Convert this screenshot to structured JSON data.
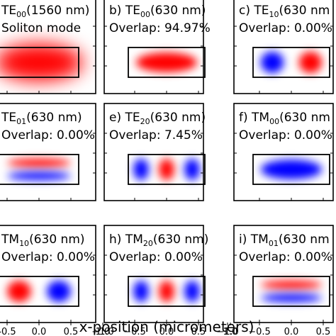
{
  "figure": {
    "xlabel": "x-position (micrometers)",
    "tick_labels": [
      "-0.5",
      "0.0",
      "0.5",
      "1.0",
      "−1.0",
      "−0.5",
      "0.0",
      "0.5",
      "1.0",
      "−1.0",
      "−0.5",
      "0.0",
      "0.5"
    ],
    "colors": {
      "positive": "#ff0000",
      "negative": "#0000ff",
      "frame": "#000000"
    }
  },
  "panels": [
    {
      "id": "a",
      "letter": "",
      "mode": "TE",
      "sub": "00",
      "wl": "(1560 nm)",
      "line2": "Soliton mode",
      "field": {
        "nx": 1,
        "ny": 1,
        "spread": "wide",
        "polarity": "positive"
      }
    },
    {
      "id": "b",
      "letter": "b) ",
      "mode": "TE",
      "sub": "00",
      "wl": "(630 nm)",
      "line2": "Overlap: 94.97%",
      "field": {
        "nx": 1,
        "ny": 1,
        "spread": "tight",
        "polarity": "positive"
      }
    },
    {
      "id": "c",
      "letter": "c) ",
      "mode": "TE",
      "sub": "10",
      "wl": "(630 nm",
      "line2": "Overlap: 0.00%",
      "field": {
        "nx": 2,
        "ny": 1,
        "spread": "tight",
        "polarity": "blue-first"
      }
    },
    {
      "id": "d",
      "letter": "",
      "mode": "TE",
      "sub": "01",
      "wl": "(630 nm)",
      "line2": "Overlap: 0.00%",
      "field": {
        "nx": 1,
        "ny": 2,
        "spread": "tight",
        "polarity": "red-first"
      }
    },
    {
      "id": "e",
      "letter": "e) ",
      "mode": "TE",
      "sub": "20",
      "wl": "(630 nm)",
      "line2": "Overlap: 7.45%",
      "field": {
        "nx": 3,
        "ny": 1,
        "spread": "tight",
        "polarity": "blue-first"
      }
    },
    {
      "id": "f",
      "letter": "f) ",
      "mode": "TM",
      "sub": "00",
      "wl": "(630 nm",
      "line2": "Overlap: 0.00%",
      "field": {
        "nx": 1,
        "ny": 1,
        "spread": "tight",
        "polarity": "negative"
      }
    },
    {
      "id": "g",
      "letter": "",
      "mode": "TM",
      "sub": "10",
      "wl": "(630 nm)",
      "line2": "Overlap: 0.00%",
      "field": {
        "nx": 2,
        "ny": 1,
        "spread": "tight",
        "polarity": "red-first"
      }
    },
    {
      "id": "h",
      "letter": "h) ",
      "mode": "TM",
      "sub": "20",
      "wl": "(630 nm)",
      "line2": "Overlap: 0.00%",
      "field": {
        "nx": 3,
        "ny": 1,
        "spread": "tight",
        "polarity": "blue-first"
      }
    },
    {
      "id": "i",
      "letter": "i) ",
      "mode": "TM",
      "sub": "01",
      "wl": "(630 nm",
      "line2": "Overlap: 0.00%",
      "field": {
        "nx": 1,
        "ny": 2,
        "spread": "tight",
        "polarity": "red-first"
      }
    }
  ]
}
